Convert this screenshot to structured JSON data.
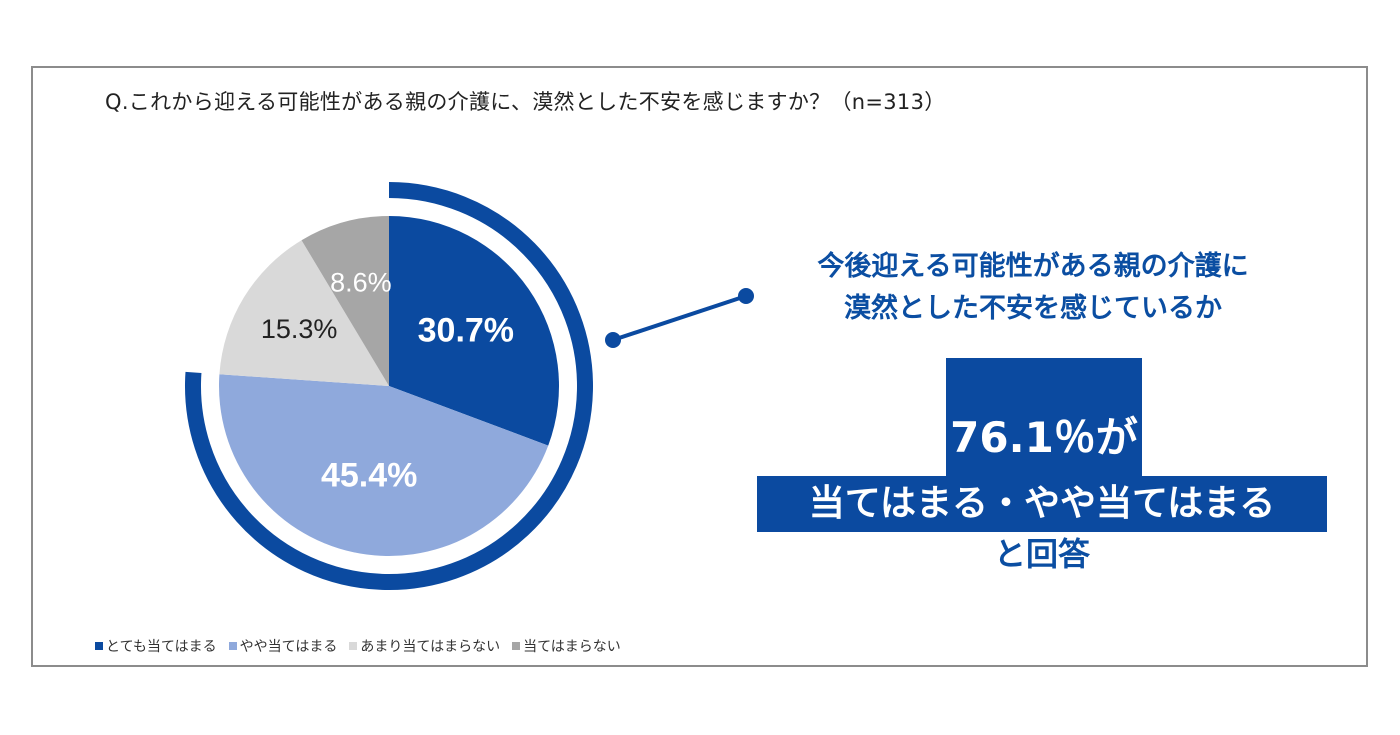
{
  "question": "Q.これから迎える可能性がある親の介護に、漠然とした不安を感じますか？（n=313）",
  "chart_data": {
    "type": "pie",
    "categories": [
      "とても当てはまる",
      "やや当てはまる",
      "あまり当てはまらない",
      "当てはまらない"
    ],
    "values": [
      30.7,
      45.4,
      15.3,
      8.6
    ],
    "labels": [
      "30.7%",
      "45.4%",
      "15.3%",
      "8.6%"
    ],
    "colors": [
      "#0b4aa0",
      "#8fa9dc",
      "#d9d9d9",
      "#a6a6a6"
    ],
    "label_colors": [
      "#ffffff",
      "#ffffff",
      "#222222",
      "#ffffff"
    ],
    "legend_placement": "bottom-left",
    "highlight_arc_total": 76.1
  },
  "callout": {
    "headline_line1": "今後迎える可能性がある親の介護に",
    "headline_line2": "漠然とした不安を感じているか",
    "big_percent": "76.1％が",
    "answer": "当てはまる・やや当てはまる",
    "answer_tail": "と回答"
  }
}
